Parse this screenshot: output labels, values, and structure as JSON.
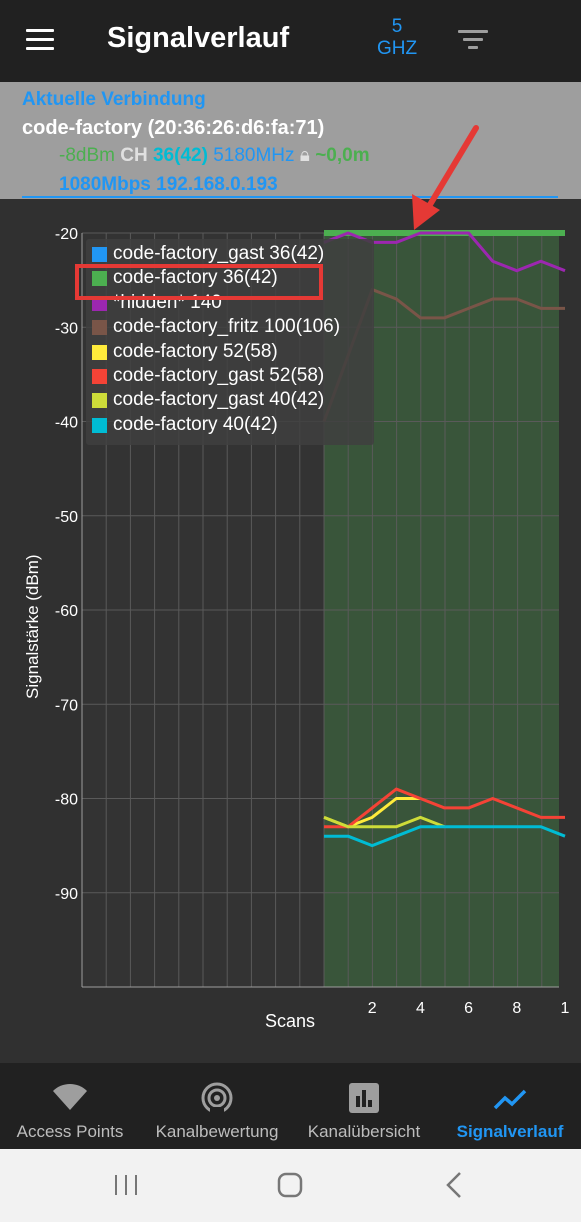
{
  "app": {
    "title": "Signalverlauf",
    "band_line1": "5",
    "band_line2": "GHZ"
  },
  "connection": {
    "header": "Aktuelle Verbindung",
    "ssid": "code-factory (20:36:26:d6:fa:71)",
    "level": "-8dBm",
    "ch_label": "CH",
    "channel": "36(42)",
    "frequency": "5180MHz",
    "distance": "~0,0m",
    "speed_ip": "1080Mbps 192.168.0.193"
  },
  "chart_data": {
    "type": "line",
    "ylabel": "Signalstärke (dBm)",
    "xlabel": "Scans",
    "ylim": [
      -100,
      -20
    ],
    "yticks": [
      -20,
      -30,
      -40,
      -50,
      -60,
      -70,
      -80,
      -90
    ],
    "xticks": [
      "2",
      "4",
      "6",
      "8",
      "1"
    ],
    "grid": true,
    "legend_position": "top-left",
    "series": [
      {
        "name": "code-factory_gast 36(42)",
        "color": "#2196f3",
        "x": [],
        "y": []
      },
      {
        "name": "code-factory 36(42)",
        "color": "#4caf50",
        "x": [
          0,
          1,
          2,
          3,
          4,
          5,
          6,
          7,
          8,
          9,
          10
        ],
        "y": [
          -20,
          -20,
          -20,
          -20,
          -20,
          -20,
          -20,
          -20,
          -20,
          -20,
          -20
        ]
      },
      {
        "name": "*hidden* 140",
        "color": "#9c27b0",
        "x": [
          0,
          1,
          2,
          3,
          4,
          5,
          6,
          7,
          8,
          9,
          10
        ],
        "y": [
          -21,
          -20,
          -21,
          -21,
          -20,
          -20,
          -20,
          -23,
          -24,
          -23,
          -24
        ]
      },
      {
        "name": "code-factory_fritz 100(106)",
        "color": "#795548",
        "x": [
          0,
          1,
          2,
          3,
          4,
          5,
          6,
          7,
          8,
          9,
          10
        ],
        "y": [
          -40,
          -33,
          -26,
          -27,
          -29,
          -29,
          -28,
          -27,
          -27,
          -28,
          -28
        ]
      },
      {
        "name": "code-factory 52(58)",
        "color": "#ffeb3b",
        "x": [
          0,
          1,
          2,
          3,
          4
        ],
        "y": [
          -82,
          -83,
          -82,
          -80,
          -80
        ]
      },
      {
        "name": "code-factory_gast 52(58)",
        "color": "#f44336",
        "x": [
          0,
          1,
          2,
          3,
          4,
          5,
          6,
          7,
          8,
          9,
          10
        ],
        "y": [
          -83,
          -83,
          -81,
          -79,
          -80,
          -81,
          -81,
          -80,
          -81,
          -82,
          -82
        ]
      },
      {
        "name": "code-factory_gast 40(42)",
        "color": "#cddc39",
        "x": [
          0,
          1,
          2,
          3,
          4,
          5
        ],
        "y": [
          -82,
          -83,
          -83,
          -83,
          -82,
          -83
        ]
      },
      {
        "name": "code-factory 40(42)",
        "color": "#00bcd4",
        "x": [
          0,
          1,
          2,
          3,
          4,
          5,
          6,
          7,
          8,
          9,
          10
        ],
        "y": [
          -84,
          -84,
          -85,
          -84,
          -83,
          -83,
          -83,
          -83,
          -83,
          -83,
          -84
        ]
      }
    ]
  },
  "nav": {
    "items": [
      {
        "label": "Access Points"
      },
      {
        "label": "Kanalbewertung"
      },
      {
        "label": "Kanalübersicht"
      },
      {
        "label": "Signalverlauf"
      }
    ]
  }
}
